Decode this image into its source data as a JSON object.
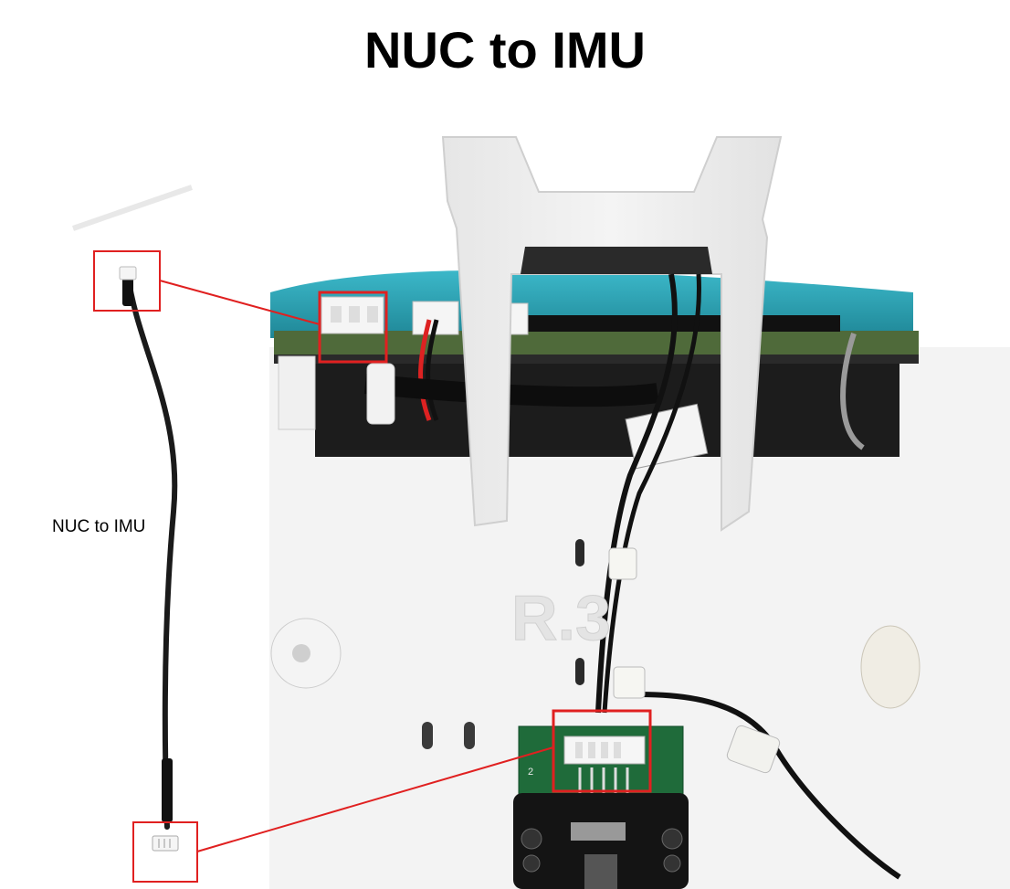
{
  "title": "NUC to IMU",
  "cable_label": "NUC to IMU",
  "board_mark": "R.3",
  "imu_board_silkscreen": "2",
  "colors": {
    "callout": "#e02020",
    "title": "#000000",
    "cable": "#1a1a1a",
    "mount": "#ececec",
    "pcb_green": "#1f6b3a",
    "teal_strap": "#2aa3b5"
  }
}
